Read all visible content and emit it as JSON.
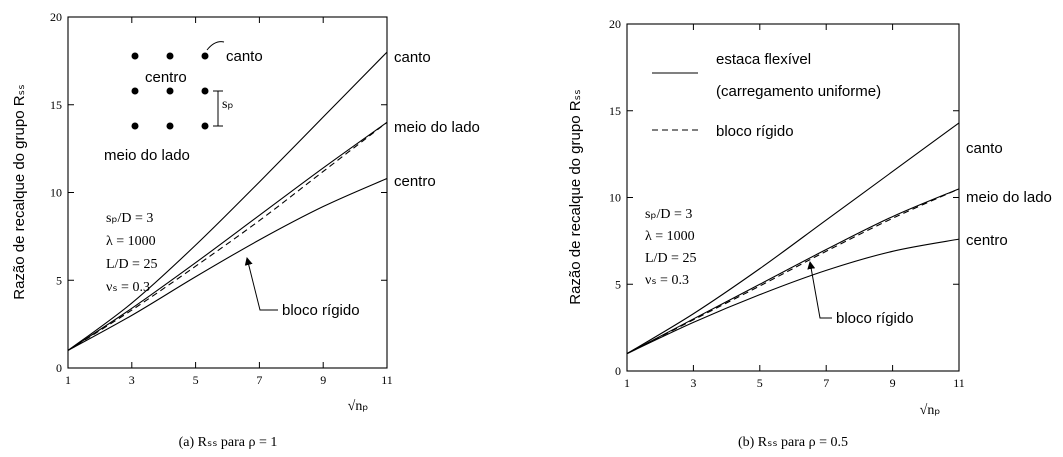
{
  "chart_data": [
    {
      "type": "line",
      "caption": "(a) Rₛₛ para ρ = 1",
      "xlabel": "√nₚ",
      "ylabel": "Razão de recalque do grupo  Rₛₛ",
      "xticks": [
        1,
        3,
        5,
        7,
        9,
        11
      ],
      "yticks": [
        0,
        5,
        10,
        15,
        20
      ],
      "xlim": [
        1,
        11
      ],
      "ylim": [
        0,
        20
      ],
      "series": [
        {
          "name": "canto",
          "style": "solid",
          "x": [
            1,
            3,
            5,
            7,
            9,
            11
          ],
          "y": [
            1,
            3.7,
            7.0,
            10.6,
            14.3,
            18.0
          ]
        },
        {
          "name": "meio do lado",
          "style": "solid",
          "x": [
            1,
            3,
            5,
            7,
            9,
            11
          ],
          "y": [
            1,
            3.4,
            6.0,
            8.7,
            11.4,
            14.0
          ]
        },
        {
          "name": "",
          "style": "dashed",
          "x": [
            1,
            3,
            5,
            7,
            9,
            11
          ],
          "y": [
            1,
            3.3,
            5.8,
            8.4,
            11.2,
            14.0
          ]
        },
        {
          "name": "centro",
          "style": "solid",
          "x": [
            1,
            3,
            5,
            7,
            9,
            11
          ],
          "y": [
            1,
            3.0,
            5.2,
            7.3,
            9.2,
            10.8
          ]
        }
      ],
      "annotations": {
        "params": [
          "sₚ/D = 3",
          "λ = 1000",
          "L/D = 25",
          "νₛ = 0.3"
        ],
        "arrow_label": "bloco rígido",
        "inset": {
          "corner": "canto",
          "center": "centro",
          "side": "meio do lado",
          "spacing": "sₚ"
        }
      }
    },
    {
      "type": "line",
      "caption": "(b) Rₛₛ para ρ = 0.5",
      "xlabel": "√nₚ",
      "ylabel": "Razão de recalque do grupo  Rₛₛ",
      "xticks": [
        1,
        3,
        5,
        7,
        9,
        11
      ],
      "yticks": [
        0,
        5,
        10,
        15,
        20
      ],
      "xlim": [
        1,
        11
      ],
      "ylim": [
        0,
        20
      ],
      "series": [
        {
          "name": "canto",
          "style": "solid",
          "x": [
            1,
            3,
            5,
            7,
            9,
            11
          ],
          "y": [
            1,
            3.3,
            5.9,
            8.7,
            11.5,
            14.3
          ]
        },
        {
          "name": "meio do lado",
          "style": "solid",
          "x": [
            1,
            3,
            5,
            7,
            9,
            11
          ],
          "y": [
            1,
            3.0,
            5.0,
            7.0,
            8.9,
            10.5
          ]
        },
        {
          "name": "",
          "style": "dashed",
          "x": [
            1,
            3,
            5,
            7,
            9,
            11
          ],
          "y": [
            1,
            2.95,
            4.9,
            6.9,
            8.8,
            10.5
          ]
        },
        {
          "name": "centro",
          "style": "solid",
          "x": [
            1,
            3,
            5,
            7,
            9,
            11
          ],
          "y": [
            1,
            2.8,
            4.4,
            5.8,
            6.9,
            7.6
          ]
        }
      ],
      "annotations": {
        "params": [
          "sₚ/D = 3",
          "λ = 1000",
          "L/D = 25",
          "νₛ = 0.3"
        ],
        "arrow_label": "bloco rígido",
        "legend": [
          {
            "style": "solid",
            "label": "estaca flexível",
            "label2": "(carregamento uniforme)"
          },
          {
            "style": "dashed",
            "label": "bloco rígido"
          }
        ]
      }
    }
  ]
}
